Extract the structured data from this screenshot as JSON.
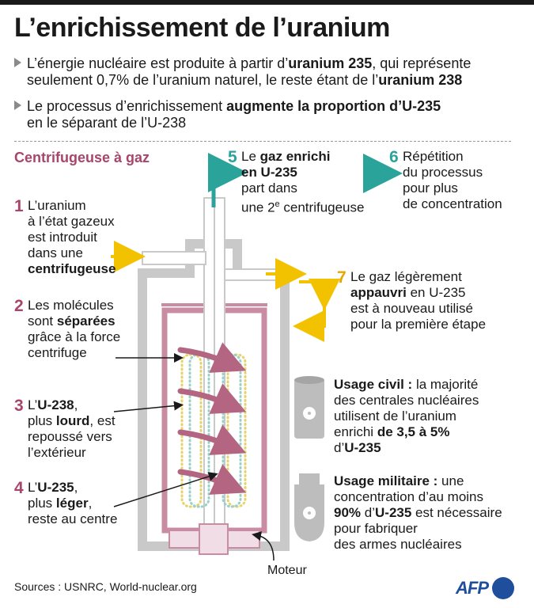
{
  "title": "L’enrichissement de l’uranium",
  "intro": [
    {
      "segments": [
        "L’énergie nucléaire est produite à partir d’",
        "uranium 235",
        ", qui représente"
      ]
    },
    {
      "segments": [
        "seulement 0,7% de l’uranium naturel, le reste étant de l’",
        "uranium 238",
        ""
      ]
    },
    {
      "segments": [
        "Le processus d’enrichissement ",
        "augmente la proportion d’U-235",
        ""
      ]
    },
    {
      "segments": [
        "en le séparant de l’U-238",
        "",
        ""
      ]
    }
  ],
  "section_title": "Centrifugeuse à gaz",
  "steps": {
    "s1": {
      "num": "1",
      "lines": [
        "L’uranium",
        "à l’état gazeux",
        "est introduit",
        "dans une"
      ],
      "bold_line": "centrifugeuse"
    },
    "s2": {
      "num": "2",
      "l1": "Les molécules",
      "l2a": "sont ",
      "l2b": "séparées",
      "l3": "grâce à la force",
      "l4": "centrifuge"
    },
    "s3": {
      "num": "3",
      "l1a": "L’",
      "l1b": "U-238",
      "l1c": ",",
      "l2a": "plus ",
      "l2b": "lourd",
      "l2c": ", est",
      "l3": "repoussé vers",
      "l4": "l’extérieur"
    },
    "s4": {
      "num": "4",
      "l1a": "L’",
      "l1b": "U-235",
      "l1c": ",",
      "l2a": "plus ",
      "l2b": "léger",
      "l2c": ",",
      "l3": "reste au centre"
    },
    "s5": {
      "num": "5",
      "l1a": "Le ",
      "l1b": "gaz enrichi",
      "l2": "en U-235",
      "l3": "part dans",
      "l4a": "une 2",
      "l4sup": "e",
      "l4b": " centrifugeuse"
    },
    "s6": {
      "num": "6",
      "lines": [
        "Répétition",
        "du processus",
        "pour plus",
        "de concentration"
      ]
    },
    "s7": {
      "num": "7",
      "l1": "Le gaz légèrement",
      "l2a": "appauvri",
      "l2b": " en U-235",
      "l3": "est à nouveau utilisé",
      "l4": "pour la première étape"
    }
  },
  "usage_civil": {
    "label": "Usage civil :",
    "l1": " la majorité",
    "l2": "des centrales nucléaires",
    "l3": "utilisent de l’uranium",
    "l4a": "enrichi ",
    "l4b": "de 3,5 à 5%",
    "l5a": "d’",
    "l5b": "U-235"
  },
  "usage_militaire": {
    "label": "Usage militaire :",
    "l1": " une",
    "l2": "concentration d’au moins",
    "l3a": "90%",
    "l3b": " d’",
    "l3c": "U-235",
    "l3d": " est nécessaire",
    "l4": "pour fabriquer",
    "l5": "des armes nucléaires"
  },
  "motor_label": "Moteur",
  "sources": "Sources : USNRC, World-nuclear.org",
  "logo": "AFP",
  "colors": {
    "magenta": "#a8456b",
    "teal": "#2aa39a",
    "yellow": "#f2c200",
    "grey": "#c9c9c9",
    "pink": "#c98ca3"
  }
}
